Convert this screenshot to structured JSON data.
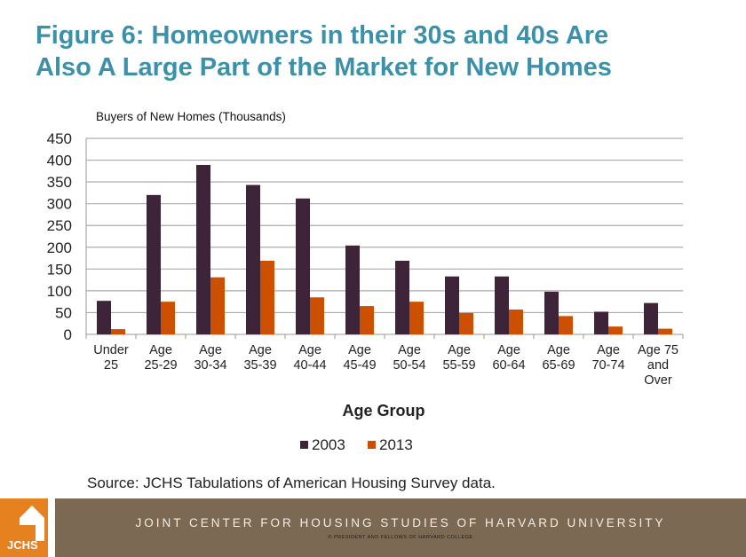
{
  "title_line1": "Figure 6: Homeowners  in their 30s and 40s Are",
  "title_line2": "Also A Large Part of the Market for New Homes",
  "source": "Source: JCHS Tabulations  of American Housing Survey data.",
  "footer": {
    "logo_text": "JCHS",
    "line1": "JOINT CENTER FOR HOUSING STUDIES OF HARVARD UNIVERSITY",
    "line2": "© PRESIDENT AND FELLOWS OF HARVARD COLLEGE"
  },
  "chart_data": {
    "type": "bar",
    "ylabel": "Buyers of New Homes (Thousands)",
    "xlabel": "Age Group",
    "ylim": [
      0,
      450
    ],
    "yticks": [
      0,
      50,
      100,
      150,
      200,
      250,
      300,
      350,
      400,
      450
    ],
    "grid": true,
    "legend": "bottom",
    "categories": [
      [
        "Under",
        "25"
      ],
      [
        "Age",
        "25-29"
      ],
      [
        "Age",
        "30-34"
      ],
      [
        "Age",
        "35-39"
      ],
      [
        "Age",
        "40-44"
      ],
      [
        "Age",
        "45-49"
      ],
      [
        "Age",
        "50-54"
      ],
      [
        "Age",
        "55-59"
      ],
      [
        "Age",
        "60-64"
      ],
      [
        "Age",
        "65-69"
      ],
      [
        "Age",
        "70-74"
      ],
      [
        "Age 75",
        "and",
        "Over"
      ]
    ],
    "series": [
      {
        "name": "2003",
        "color": "#3d2438",
        "values": [
          77,
          320,
          389,
          343,
          312,
          204,
          169,
          133,
          133,
          98,
          52,
          72
        ]
      },
      {
        "name": "2013",
        "color": "#cc5000",
        "values": [
          12,
          75,
          131,
          169,
          85,
          65,
          75,
          49,
          57,
          42,
          18,
          13
        ]
      }
    ]
  }
}
